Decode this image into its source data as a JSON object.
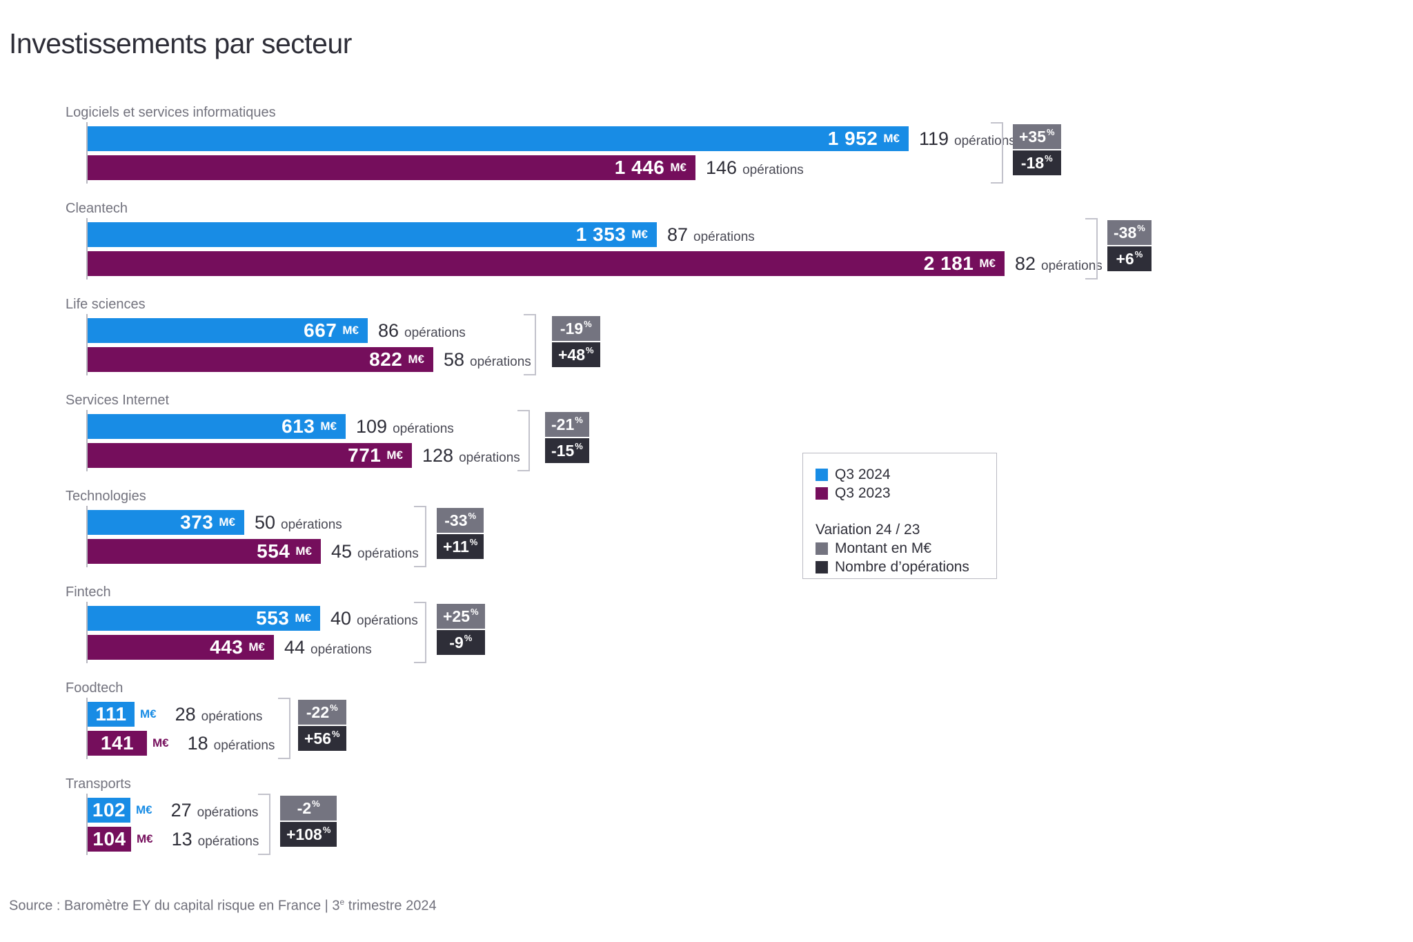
{
  "title": "Investissements par secteur",
  "legend": {
    "series": [
      {
        "label": "Q3 2024",
        "color": "#188ce5"
      },
      {
        "label": "Q3 2023",
        "color": "#750e5c"
      }
    ],
    "variation_title": "Variation 24 / 23",
    "variation_items": [
      {
        "label": "Montant en M€",
        "color": "#747480"
      },
      {
        "label": "Nombre d’opérations",
        "color": "#2e2e38"
      }
    ]
  },
  "source": {
    "prefix": "Source : Baromètre EY du capital risque en France | 3",
    "sup": "e",
    "suffix": " trimestre 2024"
  },
  "colors": {
    "q3_2024": "#188ce5",
    "q3_2023": "#750e5c",
    "variation_amount": "#747480",
    "variation_operations": "#2e2e38",
    "sector_label": "#73737e",
    "title": "#2e2e38"
  },
  "sectors": [
    {
      "name": "Logiciels et services informatiques",
      "rows": [
        {
          "value": "1 952",
          "unit": "M€",
          "count": "119",
          "word": "opérations"
        },
        {
          "value": "1 446",
          "unit": "M€",
          "count": "146",
          "word": "opérations"
        }
      ],
      "variations": [
        {
          "value": "+35",
          "sup": "%"
        },
        {
          "value": "-18",
          "sup": "%"
        }
      ]
    },
    {
      "name": "Cleantech",
      "rows": [
        {
          "value": "1 353",
          "unit": "M€",
          "count": "87",
          "word": "opérations"
        },
        {
          "value": "2 181",
          "unit": "M€",
          "count": "82",
          "word": "opérations"
        }
      ],
      "variations": [
        {
          "value": "-38",
          "sup": "%"
        },
        {
          "value": "+6",
          "sup": "%"
        }
      ]
    },
    {
      "name": "Life sciences",
      "rows": [
        {
          "value": "667",
          "unit": "M€",
          "count": "86",
          "word": "opérations"
        },
        {
          "value": "822",
          "unit": "M€",
          "count": "58",
          "word": "opérations"
        }
      ],
      "variations": [
        {
          "value": "-19",
          "sup": "%"
        },
        {
          "value": "+48",
          "sup": "%"
        }
      ]
    },
    {
      "name": "Services Internet",
      "rows": [
        {
          "value": "613",
          "unit": "M€",
          "count": "109",
          "word": "opérations"
        },
        {
          "value": "771",
          "unit": "M€",
          "count": "128",
          "word": "opérations"
        }
      ],
      "variations": [
        {
          "value": "-21",
          "sup": "%"
        },
        {
          "value": "-15",
          "sup": "%"
        }
      ]
    },
    {
      "name": "Technologies",
      "rows": [
        {
          "value": "373",
          "unit": "M€",
          "count": "50",
          "word": "opérations"
        },
        {
          "value": "554",
          "unit": "M€",
          "count": "45",
          "word": "opérations"
        }
      ],
      "variations": [
        {
          "value": "-33",
          "sup": "%"
        },
        {
          "value": "+11",
          "sup": "%"
        }
      ]
    },
    {
      "name": "Fintech",
      "rows": [
        {
          "value": "553",
          "unit": "M€",
          "count": "40",
          "word": "opérations"
        },
        {
          "value": "443",
          "unit": "M€",
          "count": "44",
          "word": "opérations"
        }
      ],
      "variations": [
        {
          "value": "+25",
          "sup": "%"
        },
        {
          "value": "-9",
          "sup": "%"
        }
      ]
    },
    {
      "name": "Foodtech",
      "rows": [
        {
          "value": "111",
          "unit": "M€",
          "count": "28",
          "word": "opérations"
        },
        {
          "value": "141",
          "unit": "M€",
          "count": "18",
          "word": "opérations"
        }
      ],
      "variations": [
        {
          "value": "-22",
          "sup": "%"
        },
        {
          "value": "+56",
          "sup": "%"
        }
      ]
    },
    {
      "name": "Transports",
      "rows": [
        {
          "value": "102",
          "unit": "M€",
          "count": "27",
          "word": "opérations"
        },
        {
          "value": "104",
          "unit": "M€",
          "count": "13",
          "word": "opérations"
        }
      ],
      "variations": [
        {
          "value": "-2",
          "sup": "%"
        },
        {
          "value": "+108",
          "sup": "%"
        }
      ]
    }
  ],
  "chart_data": {
    "type": "bar",
    "orientation": "horizontal",
    "title": "Investissements par secteur",
    "unit": "M€",
    "xlim": [
      0,
      2181
    ],
    "categories": [
      "Logiciels et services informatiques",
      "Cleantech",
      "Life sciences",
      "Services Internet",
      "Technologies",
      "Fintech",
      "Foodtech",
      "Transports"
    ],
    "series": [
      {
        "name": "Q3 2024",
        "color": "#188ce5",
        "values": [
          1952,
          1353,
          667,
          613,
          373,
          553,
          111,
          102
        ],
        "operations": [
          119,
          87,
          86,
          109,
          50,
          40,
          28,
          27
        ]
      },
      {
        "name": "Q3 2023",
        "color": "#750e5c",
        "values": [
          1446,
          2181,
          822,
          771,
          554,
          443,
          141,
          104
        ],
        "operations": [
          146,
          82,
          58,
          128,
          45,
          44,
          18,
          13
        ]
      }
    ],
    "variation_amount_pct": [
      35,
      -38,
      -19,
      -21,
      -33,
      25,
      -22,
      -2
    ],
    "variation_operations_pct": [
      -18,
      6,
      48,
      -15,
      11,
      -9,
      56,
      108
    ],
    "legend_position": "middle-right",
    "grid": false
  }
}
